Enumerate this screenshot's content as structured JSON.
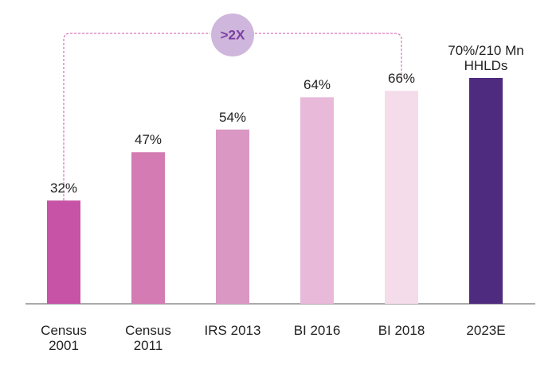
{
  "chart_data": {
    "type": "bar",
    "categories": [
      "Census 2001",
      "Census 2011",
      "IRS 2013",
      "BI 2016",
      "BI 2018",
      "2023E"
    ],
    "values": [
      32,
      47,
      54,
      64,
      66,
      70
    ],
    "value_labels": [
      "32%",
      "47%",
      "54%",
      "64%",
      "66%",
      "70%/210 Mn HHLDs"
    ],
    "colors": [
      "#c653a5",
      "#d47bb3",
      "#da97c3",
      "#e8b9d9",
      "#f4dcea",
      "#4e2b7e"
    ],
    "annotation": ">2X"
  }
}
